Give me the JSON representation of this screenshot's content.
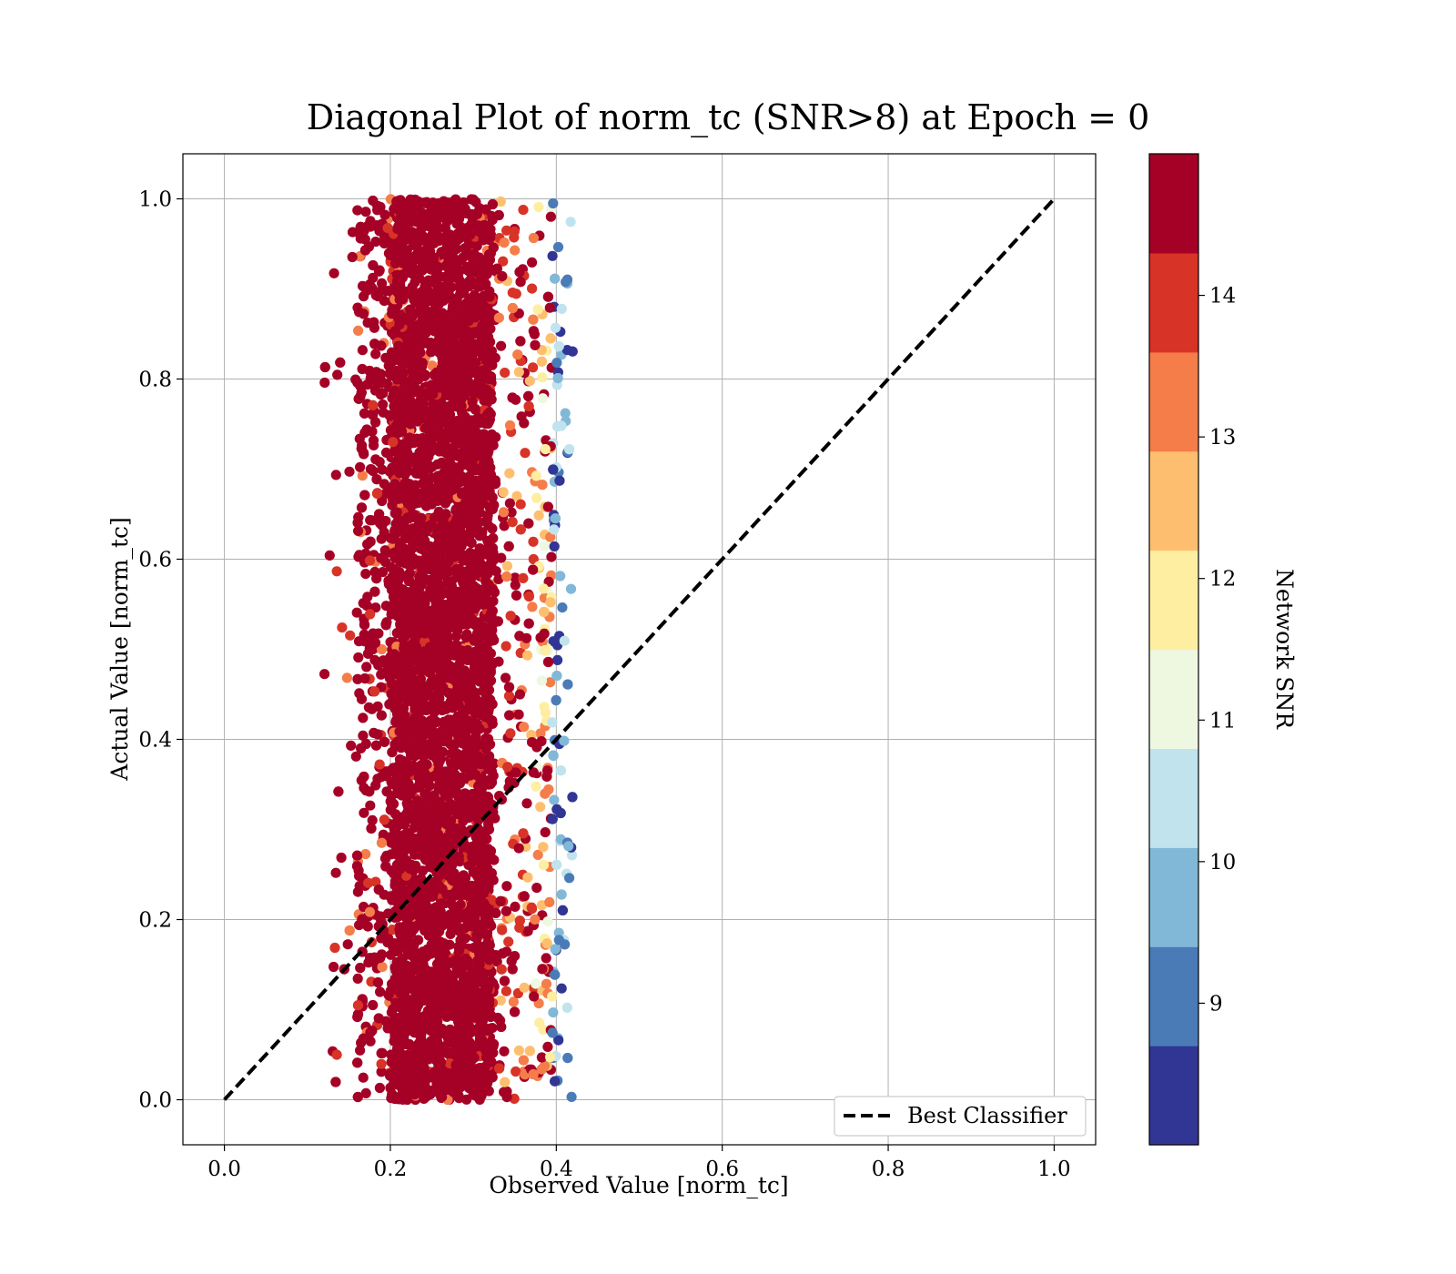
{
  "chart_data": {
    "type": "scatter",
    "title": "Diagonal Plot of norm_tc (SNR>8) at Epoch = 0",
    "xlabel": "Observed Value [norm_tc]",
    "ylabel": "Actual Value [norm_tc]",
    "xlim": [
      -0.05,
      1.05
    ],
    "ylim": [
      -0.05,
      1.05
    ],
    "x_ticks": [
      {
        "value": 0.0,
        "label": "0.0"
      },
      {
        "value": 0.2,
        "label": "0.2"
      },
      {
        "value": 0.4,
        "label": "0.4"
      },
      {
        "value": 0.6,
        "label": "0.6"
      },
      {
        "value": 0.8,
        "label": "0.8"
      },
      {
        "value": 1.0,
        "label": "1.0"
      }
    ],
    "y_ticks": [
      {
        "value": 0.0,
        "label": "0.0"
      },
      {
        "value": 0.2,
        "label": "0.2"
      },
      {
        "value": 0.4,
        "label": "0.4"
      },
      {
        "value": 0.6,
        "label": "0.6"
      },
      {
        "value": 0.8,
        "label": "0.8"
      },
      {
        "value": 1.0,
        "label": "1.0"
      }
    ],
    "grid": true,
    "legend_position": "bottom-right",
    "reference_line": {
      "name": "Best Classifier",
      "style": "dashed",
      "color": "#000000",
      "points": [
        [
          0.0,
          0.0
        ],
        [
          1.0,
          1.0
        ]
      ]
    },
    "scatter_distribution": {
      "x_range": [
        0.12,
        0.42
      ],
      "core_x_range": [
        0.2,
        0.33
      ],
      "y_range": [
        0.0,
        1.0
      ],
      "color_by": "Network SNR"
    },
    "colorbar": {
      "label": "Network SNR",
      "range": [
        8,
        15
      ],
      "ticks": [
        {
          "value": 9,
          "label": "9"
        },
        {
          "value": 10,
          "label": "10"
        },
        {
          "value": 11,
          "label": "11"
        },
        {
          "value": 12,
          "label": "12"
        },
        {
          "value": 13,
          "label": "13"
        },
        {
          "value": 14,
          "label": "14"
        }
      ],
      "colors": [
        "#313695",
        "#4a7bb7",
        "#82b8d7",
        "#c0e3ee",
        "#eef7e0",
        "#feeea2",
        "#fdbf6f",
        "#f57d4a",
        "#d83327",
        "#a50026"
      ]
    }
  }
}
